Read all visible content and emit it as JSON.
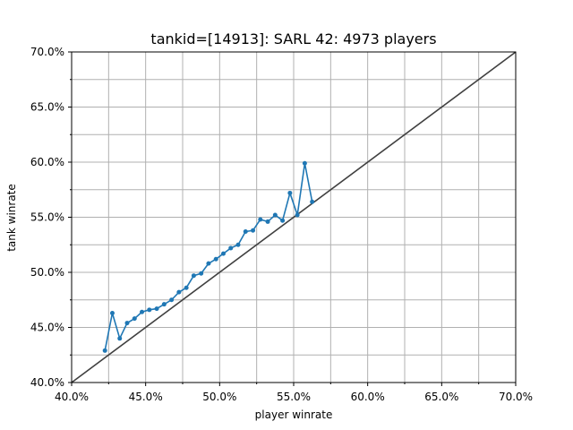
{
  "chart_data": {
    "type": "line",
    "title": "tankid=[14913]: SARL 42: 4973 players",
    "xlabel": "player winrate",
    "ylabel": "tank winrate",
    "xlim": [
      0.4,
      0.7
    ],
    "ylim": [
      0.4,
      0.7
    ],
    "major_ticks": [
      0.4,
      0.45,
      0.5,
      0.55,
      0.6,
      0.65,
      0.7
    ],
    "x_tick_labels": [
      "40.0%",
      "45.0%",
      "50.0%",
      "55.0%",
      "60.0%",
      "65.0%",
      "70.0%"
    ],
    "y_tick_labels": [
      "40.0%",
      "45.0%",
      "50.0%",
      "55.0%",
      "60.0%",
      "65.0%",
      "70.0%"
    ],
    "grid": true,
    "colors": {
      "series": "#1f77b4",
      "diagonal": "#404040",
      "grid": "#b0b0b0"
    },
    "series": [
      {
        "x": [
          0.4225,
          0.4275,
          0.4325,
          0.4375,
          0.4425,
          0.4475,
          0.4525,
          0.4575,
          0.4625,
          0.4675,
          0.4725,
          0.4775,
          0.4825,
          0.4875,
          0.4925,
          0.4975,
          0.5025,
          0.5075,
          0.5125,
          0.5175,
          0.5225,
          0.5275,
          0.5325,
          0.5375,
          0.5425,
          0.5475,
          0.5525,
          0.5575,
          0.5625
        ],
        "y": [
          0.429,
          0.463,
          0.44,
          0.454,
          0.458,
          0.464,
          0.466,
          0.467,
          0.471,
          0.475,
          0.482,
          0.486,
          0.497,
          0.499,
          0.508,
          0.512,
          0.517,
          0.522,
          0.525,
          0.537,
          0.538,
          0.548,
          0.546,
          0.552,
          0.547,
          0.572,
          0.552,
          0.599,
          0.564
        ]
      }
    ],
    "reference_line": {
      "x": [
        0.4,
        0.7
      ],
      "y": [
        0.4,
        0.7
      ]
    }
  }
}
